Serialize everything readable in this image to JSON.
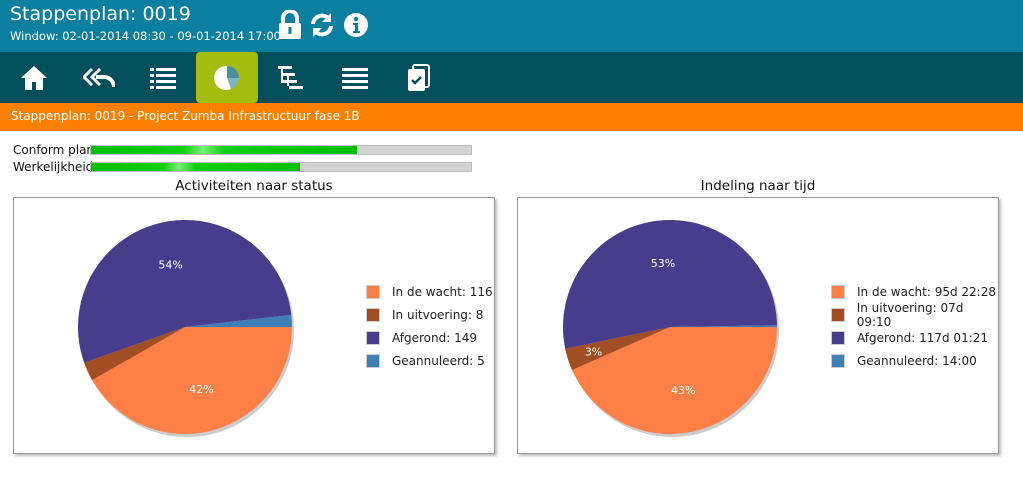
{
  "header": {
    "title": "Stappenplan: 0019",
    "window": "Window: 02-01-2014 08:30 - 09-01-2014 17:00",
    "icons": [
      "lock-icon",
      "refresh-icon",
      "info-icon"
    ]
  },
  "nav": {
    "items": [
      "home-icon",
      "back-icon",
      "list-icon",
      "pie-chart-icon",
      "tree-icon",
      "menu-icon",
      "checklist-icon"
    ],
    "active": 3
  },
  "breadcrumb": "Stappenplan: 0019 - Project Zumba Infrastructuur fase 1B",
  "progress": [
    {
      "label": "Conform plan",
      "percent": 70
    },
    {
      "label": "Werkelijkheid",
      "percent": 55
    }
  ],
  "colors": {
    "In de wacht": "#ff7f47",
    "In uitvoering": "#a24e25",
    "Afgerond": "#483c8c",
    "Geannuleerd": "#3f7fb8"
  },
  "chart_data": [
    {
      "type": "pie",
      "title": "Activiteiten naar status",
      "labels": [
        "In de wacht",
        "In uitvoering",
        "Afgerond",
        "Geannuleerd"
      ],
      "values": [
        116,
        8,
        149,
        5
      ],
      "legend": [
        "In de wacht: 116",
        "In uitvoering: 8",
        "Afgerond: 149",
        "Geannuleerd: 5"
      ],
      "data_labels": [
        "42%",
        "",
        "54%",
        ""
      ],
      "legend_position": "right"
    },
    {
      "type": "pie",
      "title": "Indeling naar tijd",
      "labels": [
        "In de wacht",
        "In uitvoering",
        "Afgerond",
        "Geannuleerd"
      ],
      "values": [
        138148,
        10630,
        168561,
        840
      ],
      "legend": [
        "In de wacht: 95d 22:28",
        "In uitvoering: 07d 09:10",
        "Afgerond: 117d 01:21",
        "Geannuleerd: 14:00"
      ],
      "data_labels": [
        "43%",
        "3%",
        "53%",
        ""
      ],
      "legend_position": "right"
    }
  ]
}
